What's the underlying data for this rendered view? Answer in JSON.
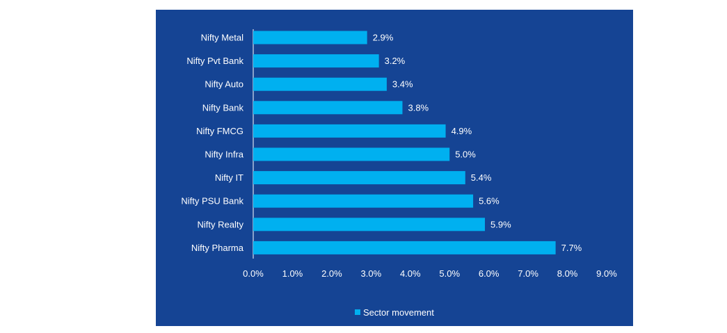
{
  "chart_data": {
    "type": "bar",
    "orientation": "horizontal",
    "title": "",
    "xlabel": "",
    "ylabel": "",
    "categories": [
      "Nifty Metal",
      "Nifty Pvt Bank",
      "Nifty Auto",
      "Nifty Bank",
      "Nifty FMCG",
      "Nifty Infra",
      "Nifty IT",
      "Nifty PSU Bank",
      "Nifty Realty",
      "Nifty Pharma"
    ],
    "series": [
      {
        "name": "Sector movement",
        "values": [
          2.9,
          3.2,
          3.4,
          3.8,
          4.9,
          5.0,
          5.4,
          5.6,
          5.9,
          7.7
        ],
        "labels": [
          "2.9%",
          "3.2%",
          "3.4%",
          "3.8%",
          "4.9%",
          "5.0%",
          "5.4%",
          "5.6%",
          "5.9%",
          "7.7%"
        ]
      }
    ],
    "xlim": [
      0,
      9
    ],
    "x_ticks": [
      0,
      1,
      2,
      3,
      4,
      5,
      6,
      7,
      8,
      9
    ],
    "x_tick_labels": [
      "0.0%",
      "1.0%",
      "2.0%",
      "3.0%",
      "4.0%",
      "5.0%",
      "6.0%",
      "7.0%",
      "8.0%",
      "9.0%"
    ],
    "grid": false,
    "legend_position": "bottom",
    "colors": {
      "background": "#154494",
      "bar": "#00B0F0",
      "text": "#FFFFFF",
      "axis": "#FFFFFF"
    }
  }
}
